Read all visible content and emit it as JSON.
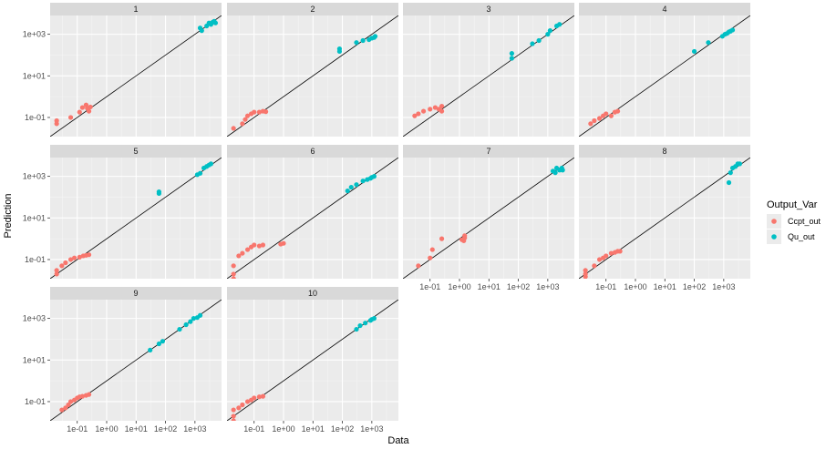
{
  "chart_data": {
    "type": "scatter",
    "xlabel": "Data",
    "ylabel": "Prediction",
    "xscale": "log10",
    "yscale": "log10",
    "xlim": [
      0.012,
      8000
    ],
    "ylim": [
      0.012,
      8000
    ],
    "x_ticks": [
      {
        "value": 0.1,
        "label": "1e-01"
      },
      {
        "value": 1,
        "label": "1e+00"
      },
      {
        "value": 10,
        "label": "1e+01"
      },
      {
        "value": 100,
        "label": "1e+02"
      },
      {
        "value": 1000,
        "label": "1e+03"
      }
    ],
    "y_ticks": [
      {
        "value": 0.1,
        "label": "1e-01"
      },
      {
        "value": 10,
        "label": "1e+01"
      },
      {
        "value": 1000,
        "label": "1e+03"
      }
    ],
    "reference_line": "y = x",
    "grid": true,
    "legend": {
      "title": "Output_Var",
      "position": "right",
      "entries": [
        {
          "name": "Ccpt_out",
          "color": "#F8766D"
        },
        {
          "name": "Qu_out",
          "color": "#00BFC4"
        }
      ]
    },
    "panels": [
      {
        "label": "1",
        "Ccpt_out": [
          [
            0.02,
            0.05
          ],
          [
            0.02,
            0.07
          ],
          [
            0.06,
            0.1
          ],
          [
            0.12,
            0.18
          ],
          [
            0.15,
            0.3
          ],
          [
            0.2,
            0.4
          ],
          [
            0.22,
            0.28
          ],
          [
            0.25,
            0.2
          ],
          [
            0.28,
            0.32
          ]
        ],
        "Qu_out": [
          [
            1500,
            2000
          ],
          [
            1700,
            1500
          ],
          [
            2500,
            2500
          ],
          [
            3000,
            3500
          ],
          [
            3500,
            3000
          ],
          [
            4000,
            3800
          ],
          [
            4500,
            4200
          ],
          [
            5000,
            3500
          ]
        ]
      },
      {
        "label": "2",
        "Ccpt_out": [
          [
            0.02,
            0.03
          ],
          [
            0.04,
            0.05
          ],
          [
            0.05,
            0.08
          ],
          [
            0.06,
            0.12
          ],
          [
            0.08,
            0.15
          ],
          [
            0.1,
            0.18
          ],
          [
            0.15,
            0.18
          ],
          [
            0.2,
            0.2
          ],
          [
            0.25,
            0.19
          ]
        ],
        "Qu_out": [
          [
            80,
            150
          ],
          [
            80,
            200
          ],
          [
            300,
            400
          ],
          [
            500,
            500
          ],
          [
            800,
            550
          ],
          [
            1000,
            650
          ],
          [
            1200,
            700
          ],
          [
            1300,
            800
          ]
        ]
      },
      {
        "label": "3",
        "Ccpt_out": [
          [
            0.03,
            0.12
          ],
          [
            0.04,
            0.15
          ],
          [
            0.06,
            0.2
          ],
          [
            0.1,
            0.25
          ],
          [
            0.15,
            0.3
          ],
          [
            0.2,
            0.25
          ],
          [
            0.25,
            0.2
          ],
          [
            0.25,
            0.35
          ]
        ],
        "Qu_out": [
          [
            60,
            70
          ],
          [
            60,
            120
          ],
          [
            300,
            350
          ],
          [
            500,
            500
          ],
          [
            1000,
            1000
          ],
          [
            1200,
            1500
          ],
          [
            2000,
            2500
          ],
          [
            2500,
            3000
          ]
        ]
      },
      {
        "label": "4",
        "Ccpt_out": [
          [
            0.03,
            0.05
          ],
          [
            0.04,
            0.07
          ],
          [
            0.06,
            0.09
          ],
          [
            0.08,
            0.12
          ],
          [
            0.1,
            0.15
          ],
          [
            0.15,
            0.12
          ],
          [
            0.2,
            0.18
          ],
          [
            0.25,
            0.2
          ]
        ],
        "Qu_out": [
          [
            100,
            150
          ],
          [
            300,
            400
          ],
          [
            900,
            800
          ],
          [
            1100,
            1000
          ],
          [
            1300,
            1100
          ],
          [
            1500,
            1300
          ],
          [
            1700,
            1400
          ],
          [
            2000,
            1600
          ]
        ]
      },
      {
        "label": "5",
        "Ccpt_out": [
          [
            0.02,
            0.02
          ],
          [
            0.02,
            0.03
          ],
          [
            0.03,
            0.05
          ],
          [
            0.04,
            0.07
          ],
          [
            0.06,
            0.1
          ],
          [
            0.08,
            0.12
          ],
          [
            0.12,
            0.13
          ],
          [
            0.16,
            0.15
          ],
          [
            0.2,
            0.16
          ],
          [
            0.25,
            0.17
          ]
        ],
        "Qu_out": [
          [
            60,
            150
          ],
          [
            60,
            180
          ],
          [
            1200,
            1200
          ],
          [
            1500,
            1400
          ],
          [
            2000,
            2500
          ],
          [
            2500,
            3000
          ],
          [
            3000,
            3500
          ],
          [
            3500,
            4000
          ]
        ]
      },
      {
        "label": "6",
        "Ccpt_out": [
          [
            0.02,
            0.012
          ],
          [
            0.02,
            0.02
          ],
          [
            0.02,
            0.05
          ],
          [
            0.03,
            0.15
          ],
          [
            0.04,
            0.2
          ],
          [
            0.06,
            0.3
          ],
          [
            0.08,
            0.4
          ],
          [
            0.1,
            0.5
          ],
          [
            0.15,
            0.45
          ],
          [
            0.2,
            0.5
          ],
          [
            0.8,
            0.55
          ],
          [
            1,
            0.6
          ]
        ],
        "Qu_out": [
          [
            150,
            200
          ],
          [
            200,
            300
          ],
          [
            300,
            400
          ],
          [
            500,
            600
          ],
          [
            700,
            700
          ],
          [
            900,
            800
          ],
          [
            1000,
            900
          ],
          [
            1200,
            1000
          ]
        ]
      },
      {
        "label": "7",
        "Ccpt_out": [
          [
            0.04,
            0.05
          ],
          [
            0.1,
            0.12
          ],
          [
            0.12,
            0.3
          ],
          [
            0.25,
            1
          ],
          [
            1.2,
            0.9
          ],
          [
            1.4,
            0.8
          ],
          [
            1.5,
            1.1
          ],
          [
            1.5,
            1.4
          ]
        ],
        "Qu_out": [
          [
            1500,
            1800
          ],
          [
            1800,
            1500
          ],
          [
            2000,
            2500
          ],
          [
            2500,
            2000
          ],
          [
            3000,
            2500
          ],
          [
            3200,
            2000
          ]
        ]
      },
      {
        "label": "8",
        "Ccpt_out": [
          [
            0.02,
            0.015
          ],
          [
            0.02,
            0.02
          ],
          [
            0.02,
            0.03
          ],
          [
            0.04,
            0.05
          ],
          [
            0.06,
            0.1
          ],
          [
            0.08,
            0.12
          ],
          [
            0.1,
            0.15
          ],
          [
            0.15,
            0.2
          ],
          [
            0.2,
            0.22
          ],
          [
            0.25,
            0.25
          ],
          [
            0.3,
            0.25
          ]
        ],
        "Qu_out": [
          [
            1500,
            500
          ],
          [
            1700,
            1500
          ],
          [
            2000,
            2500
          ],
          [
            2500,
            3000
          ],
          [
            3000,
            4000
          ],
          [
            3500,
            4000
          ]
        ]
      },
      {
        "label": "9",
        "Ccpt_out": [
          [
            0.03,
            0.04
          ],
          [
            0.04,
            0.05
          ],
          [
            0.05,
            0.07
          ],
          [
            0.06,
            0.1
          ],
          [
            0.08,
            0.12
          ],
          [
            0.1,
            0.15
          ],
          [
            0.12,
            0.17
          ],
          [
            0.15,
            0.18
          ],
          [
            0.2,
            0.2
          ],
          [
            0.25,
            0.22
          ]
        ],
        "Qu_out": [
          [
            30,
            30
          ],
          [
            60,
            60
          ],
          [
            80,
            80
          ],
          [
            300,
            300
          ],
          [
            500,
            500
          ],
          [
            700,
            700
          ],
          [
            900,
            1000
          ],
          [
            1200,
            1100
          ],
          [
            1500,
            1400
          ]
        ]
      },
      {
        "label": "10",
        "Ccpt_out": [
          [
            0.02,
            0.012
          ],
          [
            0.02,
            0.02
          ],
          [
            0.02,
            0.04
          ],
          [
            0.03,
            0.05
          ],
          [
            0.04,
            0.07
          ],
          [
            0.06,
            0.1
          ],
          [
            0.08,
            0.12
          ],
          [
            0.1,
            0.15
          ],
          [
            0.15,
            0.17
          ],
          [
            0.2,
            0.18
          ]
        ],
        "Qu_out": [
          [
            300,
            300
          ],
          [
            400,
            450
          ],
          [
            600,
            600
          ],
          [
            900,
            800
          ],
          [
            1000,
            900
          ],
          [
            1200,
            1000
          ]
        ]
      }
    ]
  }
}
